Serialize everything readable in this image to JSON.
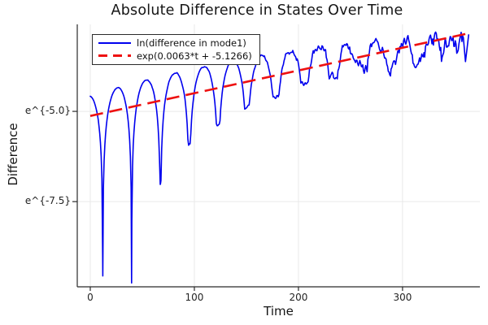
{
  "chart_data": {
    "type": "line",
    "title": "Absolute Difference in States Over Time",
    "xlabel": "Time",
    "ylabel": "Difference",
    "background": "#ffffff",
    "grid": true,
    "grid_color": "#e9e9e9",
    "axis_color": "#2a2a2a",
    "legend_position": "top-left",
    "x_axis": {
      "label": "Time",
      "min": -12.5,
      "max": 374.3,
      "ticks": [
        {
          "value": 0,
          "label": "0"
        },
        {
          "value": 100,
          "label": "100"
        },
        {
          "value": 200,
          "label": "200"
        },
        {
          "value": 300,
          "label": "300"
        }
      ]
    },
    "y_axis": {
      "label": "Difference",
      "scale": "ln",
      "min": -9.86,
      "max": -2.59,
      "ticks": [
        {
          "value": -5.0,
          "label": "e^{-5.0}"
        },
        {
          "value": -7.5,
          "label": "e^{-7.5}"
        }
      ]
    },
    "series": [
      {
        "name": "ln(difference in mode1)",
        "color": "#0000ee",
        "style": "solid",
        "width": 1.6,
        "model": {
          "t_start": 0,
          "t_end": 359,
          "step": 0.7,
          "envelope": {
            "a": -4.56,
            "b": 0.0086,
            "c": -1.15e-05
          },
          "cusp_first_dip": 12,
          "cusp_period": 27.7,
          "dips": [
            [
              12,
              -9.55
            ],
            [
              39.7,
              -9.75
            ],
            [
              67.4,
              -7.0
            ],
            [
              95.1,
              -5.9
            ],
            [
              122.8,
              -5.38
            ],
            [
              150.5,
              -4.89
            ],
            [
              178.2,
              -4.57
            ],
            [
              205.9,
              -4.22
            ],
            [
              233.6,
              -4.02
            ],
            [
              261.3,
              -3.75
            ],
            [
              289.0,
              -3.85
            ],
            [
              316.7,
              -3.55
            ],
            [
              344.4,
              -3.2
            ]
          ],
          "tail": [
            [
              360.5,
              -3.62
            ],
            [
              362.0,
              -3.25
            ],
            [
              363.5,
              -2.88
            ]
          ],
          "noise": {
            "seed": 7,
            "low_amp": 0.012,
            "mid_amp": 0.025,
            "ramp_start": 140,
            "ramp_rate": 0.00185,
            "max_amp": 0.44,
            "scale": 1.25
          }
        },
        "observed_peaks": [
          [
            0,
            -4.57
          ],
          [
            24,
            -4.44
          ],
          [
            52,
            -4.3
          ],
          [
            78,
            -3.97
          ],
          [
            108,
            -3.68
          ],
          [
            136,
            -3.47
          ],
          [
            163,
            -3.45
          ],
          [
            190,
            -3.31
          ],
          [
            218,
            -3.22
          ],
          [
            245,
            -3.13
          ],
          [
            300,
            -3.0
          ],
          [
            347,
            -2.85
          ],
          [
            364,
            -2.88
          ]
        ]
      },
      {
        "name": "exp(0.0063*t + -5.1266)",
        "color": "#ee1111",
        "style": "dashed",
        "width": 2.6,
        "slope": 0.0063,
        "intercept": -5.1266,
        "t_range": [
          0,
          366
        ]
      }
    ]
  },
  "legend": {
    "items": [
      {
        "label": "ln(difference in mode1)",
        "color": "#0000ee",
        "dash": false
      },
      {
        "label": "exp(0.0063*t + -5.1266)",
        "color": "#ee1111",
        "dash": true
      }
    ]
  }
}
